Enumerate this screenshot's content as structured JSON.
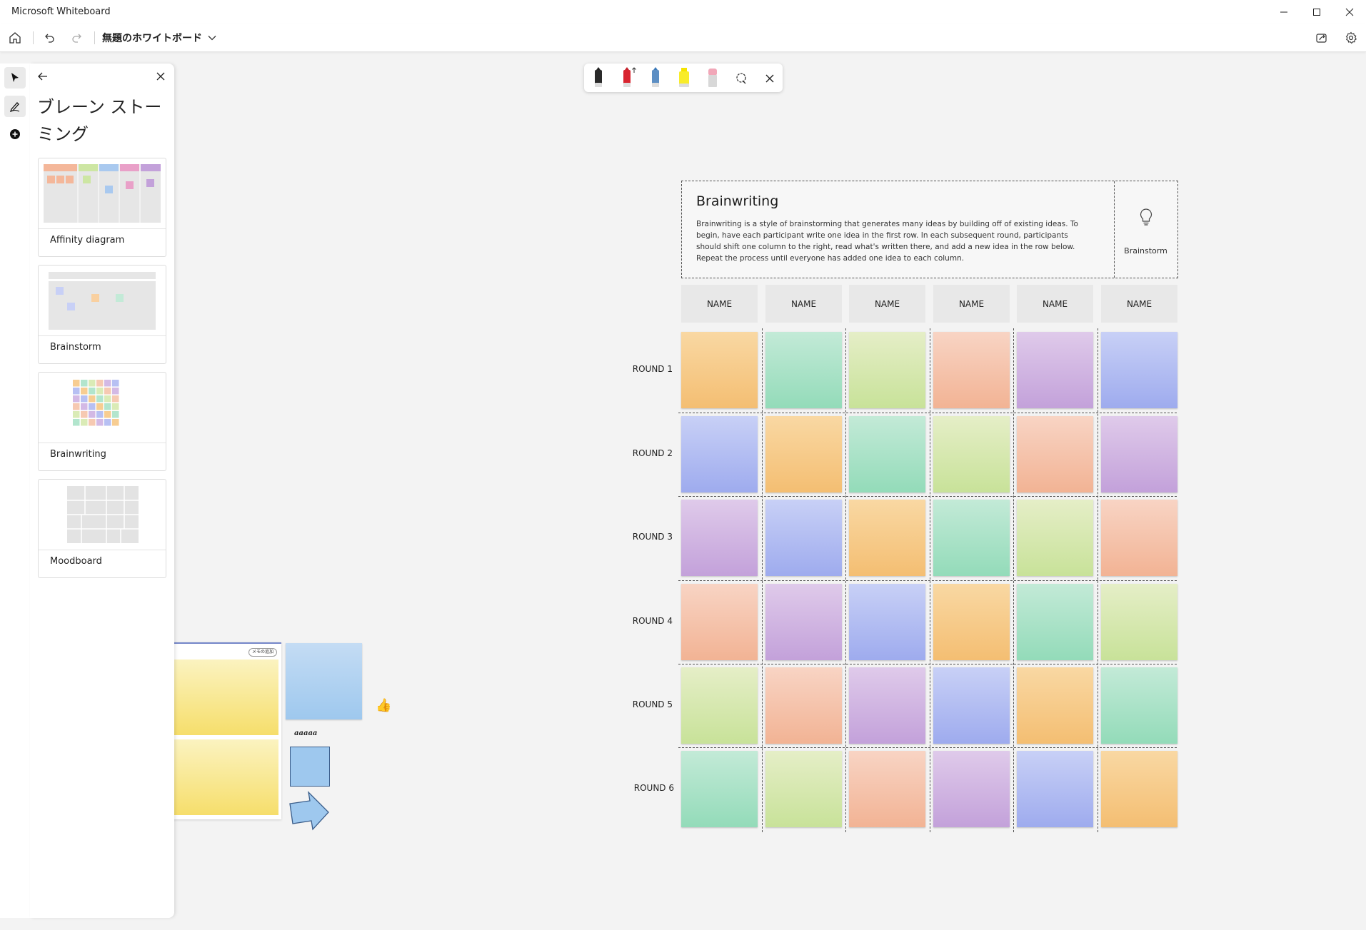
{
  "window": {
    "title": "Microsoft Whiteboard",
    "minimize_icon": "minimize-icon",
    "maximize_icon": "maximize-icon",
    "close_icon": "close-icon"
  },
  "commandbar": {
    "board_name": "無題のホワイトボード"
  },
  "panel": {
    "title": "ブレーン ストーミング",
    "templates": [
      {
        "label": "Affinity diagram"
      },
      {
        "label": "Brainstorm"
      },
      {
        "label": "Brainwriting"
      },
      {
        "label": "Moodboard"
      }
    ]
  },
  "template": {
    "title": "Brainwriting",
    "description": "Brainwriting is a style of brainstorming that generates many ideas by building off of existing ideas. To begin, have each participant write one idea in the first row. In each subsequent round, participants should shift one column to the right, read what's written there, and add a new idea in the row below. Repeat the process until everyone has added one idea to each column.",
    "button_label": "Brainstorm",
    "columns": [
      "NAME",
      "NAME",
      "NAME",
      "NAME",
      "NAME",
      "NAME"
    ],
    "rounds": [
      "ROUND 1",
      "ROUND 2",
      "ROUND 3",
      "ROUND 4",
      "ROUND 5",
      "ROUND 6"
    ],
    "colors": {
      "orange": "#f6c47f",
      "teal": "#a5e0c4",
      "lime": "#d3e7a9",
      "peach": "#f4bfa5",
      "purple": "#cbade0",
      "blue": "#aab5f1"
    }
  },
  "canvas": {
    "small_tag": "メモの追加",
    "ink_text": "aaaaa",
    "emoji": "👍"
  }
}
